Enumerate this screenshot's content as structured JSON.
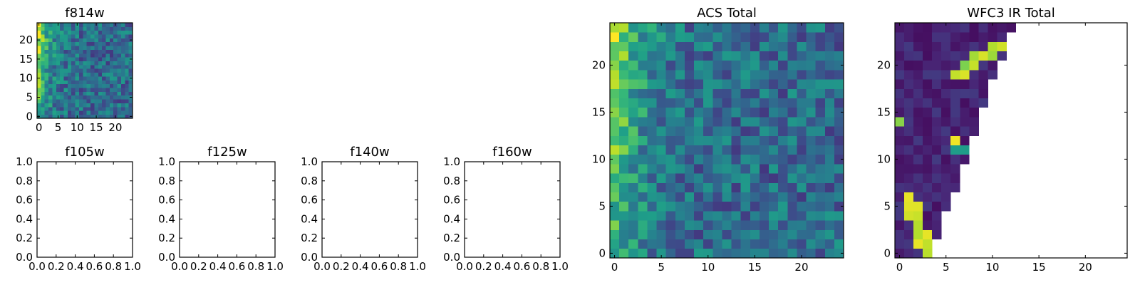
{
  "figure": {
    "background": "#ffffff"
  },
  "colormap": "viridis",
  "chart_data": [
    {
      "id": "f814w",
      "type": "heatmap",
      "title": "f814w",
      "nrows": 25,
      "ncols": 25,
      "xlim": [
        -0.5,
        24.5
      ],
      "ylim": [
        -0.5,
        24.5
      ],
      "xticks": [
        0,
        5,
        10,
        15,
        20
      ],
      "yticks": [
        0,
        5,
        10,
        15,
        20
      ],
      "xtick_labels": [
        "0",
        "5",
        "10",
        "15",
        "20"
      ],
      "ytick_labels": [
        "0",
        "5",
        "10",
        "15",
        "20"
      ],
      "pattern": "acs",
      "seed": 11
    },
    {
      "id": "f105w",
      "type": "empty",
      "title": "f105w",
      "xlim": [
        0,
        1
      ],
      "ylim": [
        0,
        1
      ],
      "xticks": [
        0,
        0.2,
        0.4,
        0.6,
        0.8,
        1
      ],
      "yticks": [
        0,
        0.2,
        0.4,
        0.6,
        0.8,
        1
      ],
      "xtick_labels": [
        "0.0",
        "0.2",
        "0.4",
        "0.6",
        "0.8",
        "1.0"
      ],
      "ytick_labels": [
        "0.0",
        "0.2",
        "0.4",
        "0.6",
        "0.8",
        "1.0"
      ]
    },
    {
      "id": "f125w",
      "type": "empty",
      "title": "f125w",
      "xlim": [
        0,
        1
      ],
      "ylim": [
        0,
        1
      ],
      "xticks": [
        0,
        0.2,
        0.4,
        0.6,
        0.8,
        1
      ],
      "yticks": [
        0,
        0.2,
        0.4,
        0.6,
        0.8,
        1
      ],
      "xtick_labels": [
        "0.0",
        "0.2",
        "0.4",
        "0.6",
        "0.8",
        "1.0"
      ],
      "ytick_labels": [
        "0.0",
        "0.2",
        "0.4",
        "0.6",
        "0.8",
        "1.0"
      ]
    },
    {
      "id": "f140w",
      "type": "empty",
      "title": "f140w",
      "xlim": [
        0,
        1
      ],
      "ylim": [
        0,
        1
      ],
      "xticks": [
        0,
        0.2,
        0.4,
        0.6,
        0.8,
        1
      ],
      "yticks": [
        0,
        0.2,
        0.4,
        0.6,
        0.8,
        1
      ],
      "xtick_labels": [
        "0.0",
        "0.2",
        "0.4",
        "0.6",
        "0.8",
        "1.0"
      ],
      "ytick_labels": [
        "0.0",
        "0.2",
        "0.4",
        "0.6",
        "0.8",
        "1.0"
      ]
    },
    {
      "id": "f160w",
      "type": "empty",
      "title": "f160w",
      "xlim": [
        0,
        1
      ],
      "ylim": [
        0,
        1
      ],
      "xticks": [
        0,
        0.2,
        0.4,
        0.6,
        0.8,
        1
      ],
      "yticks": [
        0,
        0.2,
        0.4,
        0.6,
        0.8,
        1
      ],
      "xtick_labels": [
        "0.0",
        "0.2",
        "0.4",
        "0.6",
        "0.8",
        "1.0"
      ],
      "ytick_labels": [
        "0.0",
        "0.2",
        "0.4",
        "0.6",
        "0.8",
        "1.0"
      ]
    },
    {
      "id": "acs-total",
      "type": "heatmap",
      "title": "ACS Total",
      "nrows": 25,
      "ncols": 25,
      "xlim": [
        -0.5,
        24.5
      ],
      "ylim": [
        -0.5,
        24.5
      ],
      "xticks": [
        0,
        5,
        10,
        15,
        20
      ],
      "yticks": [
        0,
        5,
        10,
        15,
        20
      ],
      "xtick_labels": [
        "0",
        "5",
        "10",
        "15",
        "20"
      ],
      "ytick_labels": [
        "0",
        "5",
        "10",
        "15",
        "20"
      ],
      "pattern": "acs",
      "seed": 7
    },
    {
      "id": "wfc3-ir-total",
      "type": "heatmap",
      "title": "WFC3 IR Total",
      "nrows": 25,
      "ncols": 25,
      "xlim": [
        -0.5,
        24.5
      ],
      "ylim": [
        -0.5,
        24.5
      ],
      "xticks": [
        0,
        5,
        10,
        15,
        20
      ],
      "yticks": [
        0,
        5,
        10,
        15,
        20
      ],
      "xtick_labels": [
        "0",
        "5",
        "10",
        "15",
        "20"
      ],
      "ytick_labels": [
        "0",
        "5",
        "10",
        "15",
        "20"
      ],
      "pattern": "wfc3",
      "seed": 3,
      "masked": "blank (NaN) pixels above and right of the diagonal footprint edge"
    }
  ]
}
